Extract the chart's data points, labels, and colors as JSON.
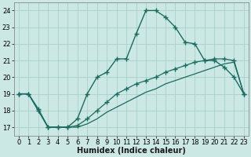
{
  "xlabel": "Humidex (Indice chaleur)",
  "background_color": "#cce8e4",
  "grid_color": "#aacfcb",
  "line_color": "#1a6b60",
  "xlim": [
    -0.5,
    23.5
  ],
  "ylim": [
    16.5,
    24.5
  ],
  "xticks": [
    0,
    1,
    2,
    3,
    4,
    5,
    6,
    7,
    8,
    9,
    10,
    11,
    12,
    13,
    14,
    15,
    16,
    17,
    18,
    19,
    20,
    21,
    22,
    23
  ],
  "yticks": [
    17,
    18,
    19,
    20,
    21,
    22,
    23,
    24
  ],
  "line1_x": [
    0,
    1,
    2,
    3,
    4,
    5,
    6,
    7,
    8,
    9,
    10,
    11,
    12,
    13,
    14,
    15,
    16,
    17,
    18,
    19,
    20,
    21,
    22,
    23
  ],
  "line1_y": [
    19.0,
    19.0,
    18.1,
    17.0,
    17.0,
    17.0,
    17.5,
    19.0,
    20.0,
    20.3,
    21.1,
    21.1,
    22.6,
    24.0,
    24.0,
    23.6,
    23.0,
    22.1,
    22.0,
    21.0,
    21.0,
    20.6,
    20.0,
    19.0
  ],
  "line2_x": [
    0,
    1,
    2,
    3,
    4,
    5,
    6,
    7,
    8,
    9,
    10,
    11,
    12,
    13,
    14,
    15,
    16,
    17,
    18,
    19,
    20,
    21,
    22,
    23
  ],
  "line2_y": [
    19.0,
    19.0,
    18.0,
    17.0,
    17.0,
    17.0,
    17.1,
    17.5,
    18.0,
    18.5,
    19.0,
    19.3,
    19.6,
    19.8,
    20.0,
    20.3,
    20.5,
    20.7,
    20.9,
    21.0,
    21.1,
    21.1,
    21.0,
    19.0
  ],
  "line3_x": [
    0,
    1,
    2,
    3,
    4,
    5,
    6,
    7,
    8,
    9,
    10,
    11,
    12,
    13,
    14,
    15,
    16,
    17,
    18,
    19,
    20,
    21,
    22,
    23
  ],
  "line3_y": [
    19.0,
    19.0,
    18.0,
    17.0,
    17.0,
    17.0,
    17.0,
    17.2,
    17.5,
    17.9,
    18.2,
    18.5,
    18.8,
    19.1,
    19.3,
    19.6,
    19.8,
    20.0,
    20.2,
    20.4,
    20.6,
    20.8,
    20.9,
    19.0
  ],
  "marker": "+",
  "markersize": 4,
  "linewidth1": 1.0,
  "linewidth2": 0.9,
  "linewidth3": 0.9,
  "tick_fontsize": 6,
  "xlabel_fontsize": 7
}
